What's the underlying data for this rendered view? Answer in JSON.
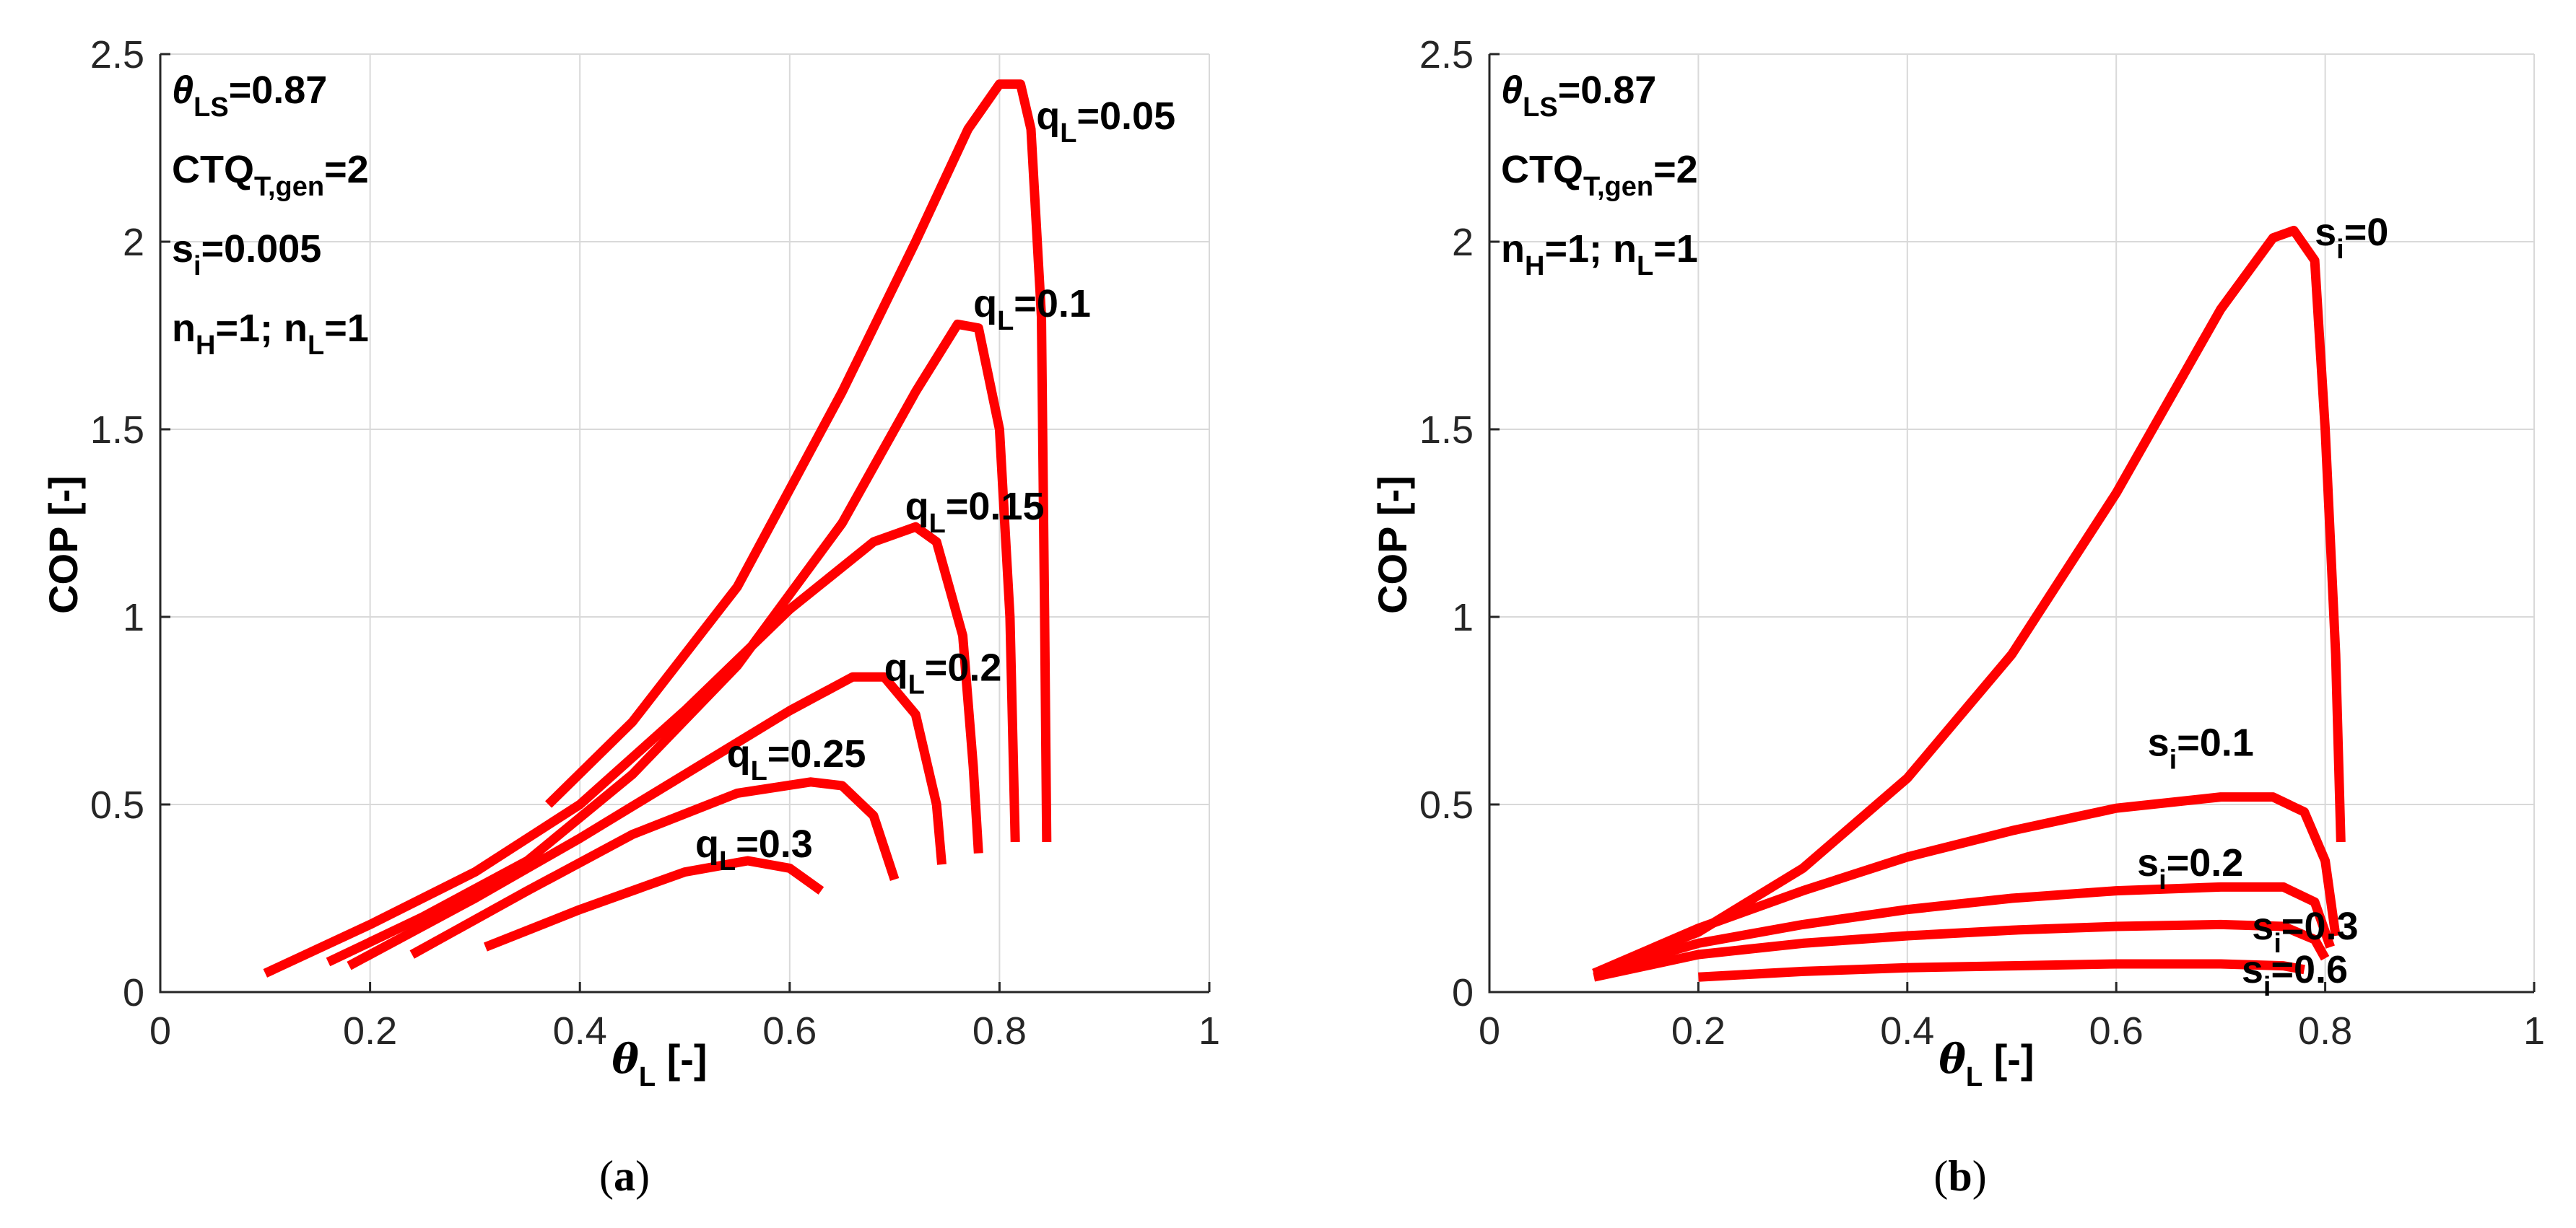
{
  "chart_data": [
    {
      "type": "line",
      "id": "a",
      "caption_open": "(",
      "caption_letter": "a",
      "caption_close": ")",
      "xlabel": "θ",
      "xlabel_sub": "L",
      "xlabel_unit": " [-]",
      "ylabel": "COP [-]",
      "xlim": [
        0,
        1
      ],
      "ylim": [
        0,
        2.5
      ],
      "xticks": [
        "0",
        "0.2",
        "0.4",
        "0.6",
        "0.8",
        "1"
      ],
      "yticks": [
        "0",
        "0.5",
        "1",
        "1.5",
        "2",
        "2.5"
      ],
      "params": [
        {
          "parts": [
            {
              "t": "θ",
              "s": ""
            },
            {
              "t": "LS",
              "s": "sub"
            },
            {
              "t": "=0.87",
              "s": ""
            }
          ]
        },
        {
          "parts": [
            {
              "t": "CTQ",
              "s": ""
            },
            {
              "t": "T,gen",
              "s": "sub"
            },
            {
              "t": "=2",
              "s": ""
            }
          ]
        },
        {
          "parts": [
            {
              "t": "s",
              "s": ""
            },
            {
              "t": "i",
              "s": "sub"
            },
            {
              "t": "=0.005",
              "s": ""
            }
          ]
        },
        {
          "parts": [
            {
              "t": "n",
              "s": ""
            },
            {
              "t": "H",
              "s": "sub"
            },
            {
              "t": "=1; n",
              "s": ""
            },
            {
              "t": "L",
              "s": "sub"
            },
            {
              "t": "=1",
              "s": ""
            }
          ]
        }
      ],
      "series": [
        {
          "label_base": "q",
          "label_sub": "L",
          "label_val": "=0.05",
          "label_at": [
            0.835,
            2.3
          ],
          "points": [
            [
              0.37,
              0.5
            ],
            [
              0.45,
              0.72
            ],
            [
              0.55,
              1.08
            ],
            [
              0.65,
              1.6
            ],
            [
              0.72,
              2.0
            ],
            [
              0.77,
              2.3
            ],
            [
              0.8,
              2.42
            ],
            [
              0.82,
              2.42
            ],
            [
              0.83,
              2.3
            ],
            [
              0.84,
              1.8
            ],
            [
              0.843,
              1.0
            ],
            [
              0.845,
              0.4
            ]
          ]
        },
        {
          "label_base": "q",
          "label_sub": "L",
          "label_val": "=0.1",
          "label_at": [
            0.775,
            1.8
          ],
          "points": [
            [
              0.16,
              0.08
            ],
            [
              0.25,
              0.2
            ],
            [
              0.35,
              0.35
            ],
            [
              0.45,
              0.58
            ],
            [
              0.55,
              0.87
            ],
            [
              0.65,
              1.25
            ],
            [
              0.72,
              1.6
            ],
            [
              0.76,
              1.78
            ],
            [
              0.78,
              1.77
            ],
            [
              0.8,
              1.5
            ],
            [
              0.81,
              1.0
            ],
            [
              0.815,
              0.4
            ]
          ]
        },
        {
          "label_base": "q",
          "label_sub": "L",
          "label_val": "=0.15",
          "label_at": [
            0.71,
            1.26
          ],
          "points": [
            [
              0.1,
              0.05
            ],
            [
              0.2,
              0.18
            ],
            [
              0.3,
              0.32
            ],
            [
              0.4,
              0.5
            ],
            [
              0.5,
              0.75
            ],
            [
              0.6,
              1.02
            ],
            [
              0.68,
              1.2
            ],
            [
              0.72,
              1.24
            ],
            [
              0.74,
              1.2
            ],
            [
              0.765,
              0.95
            ],
            [
              0.775,
              0.6
            ],
            [
              0.78,
              0.37
            ]
          ]
        },
        {
          "label_base": "q",
          "label_sub": "L",
          "label_val": "=0.2",
          "label_at": [
            0.69,
            0.83
          ],
          "points": [
            [
              0.18,
              0.07
            ],
            [
              0.3,
              0.25
            ],
            [
              0.4,
              0.41
            ],
            [
              0.5,
              0.58
            ],
            [
              0.6,
              0.75
            ],
            [
              0.66,
              0.84
            ],
            [
              0.69,
              0.84
            ],
            [
              0.72,
              0.74
            ],
            [
              0.74,
              0.5
            ],
            [
              0.745,
              0.34
            ]
          ]
        },
        {
          "label_base": "q",
          "label_sub": "L",
          "label_val": "=0.25",
          "label_at": [
            0.54,
            0.6
          ],
          "points": [
            [
              0.24,
              0.1
            ],
            [
              0.35,
              0.27
            ],
            [
              0.45,
              0.42
            ],
            [
              0.55,
              0.53
            ],
            [
              0.62,
              0.56
            ],
            [
              0.65,
              0.55
            ],
            [
              0.68,
              0.47
            ],
            [
              0.7,
              0.3
            ]
          ]
        },
        {
          "label_base": "q",
          "label_sub": "L",
          "label_val": "=0.3",
          "label_at": [
            0.51,
            0.36
          ],
          "points": [
            [
              0.31,
              0.12
            ],
            [
              0.4,
              0.22
            ],
            [
              0.5,
              0.32
            ],
            [
              0.56,
              0.35
            ],
            [
              0.6,
              0.33
            ],
            [
              0.63,
              0.27
            ]
          ]
        }
      ]
    },
    {
      "type": "line",
      "id": "b",
      "caption_open": "(",
      "caption_letter": "b",
      "caption_close": ")",
      "xlabel": "θ",
      "xlabel_sub": "L",
      "xlabel_unit": " [-]",
      "ylabel": "COP [-]",
      "xlim": [
        0,
        1
      ],
      "ylim": [
        0,
        2.5
      ],
      "xticks": [
        "0",
        "0.2",
        "0.4",
        "0.6",
        "0.8",
        "1"
      ],
      "yticks": [
        "0",
        "0.5",
        "1",
        "1.5",
        "2",
        "2.5"
      ],
      "params": [
        {
          "parts": [
            {
              "t": "θ",
              "s": ""
            },
            {
              "t": "LS",
              "s": "sub"
            },
            {
              "t": "=0.87",
              "s": ""
            }
          ]
        },
        {
          "parts": [
            {
              "t": "CTQ",
              "s": ""
            },
            {
              "t": "T,gen",
              "s": "sub"
            },
            {
              "t": "=2",
              "s": ""
            }
          ]
        },
        {
          "parts": [
            {
              "t": "n",
              "s": ""
            },
            {
              "t": "H",
              "s": "sub"
            },
            {
              "t": "=1; n",
              "s": ""
            },
            {
              "t": "L",
              "s": "sub"
            },
            {
              "t": "=1",
              "s": ""
            }
          ]
        }
      ],
      "series": [
        {
          "label_base": "s",
          "label_sub": "i",
          "label_val": "=0",
          "label_at": [
            0.79,
            1.99
          ],
          "points": [
            [
              0.1,
              0.05
            ],
            [
              0.2,
              0.16
            ],
            [
              0.3,
              0.33
            ],
            [
              0.4,
              0.57
            ],
            [
              0.5,
              0.9
            ],
            [
              0.6,
              1.33
            ],
            [
              0.7,
              1.82
            ],
            [
              0.75,
              2.01
            ],
            [
              0.77,
              2.03
            ],
            [
              0.79,
              1.95
            ],
            [
              0.8,
              1.5
            ],
            [
              0.81,
              0.9
            ],
            [
              0.815,
              0.4
            ]
          ]
        },
        {
          "label_base": "s",
          "label_sub": "i",
          "label_val": "=0.1",
          "label_at": [
            0.63,
            0.63
          ],
          "points": [
            [
              0.1,
              0.05
            ],
            [
              0.2,
              0.17
            ],
            [
              0.3,
              0.27
            ],
            [
              0.4,
              0.36
            ],
            [
              0.5,
              0.43
            ],
            [
              0.6,
              0.49
            ],
            [
              0.7,
              0.52
            ],
            [
              0.75,
              0.52
            ],
            [
              0.78,
              0.48
            ],
            [
              0.8,
              0.35
            ],
            [
              0.81,
              0.15
            ]
          ]
        },
        {
          "label_base": "s",
          "label_sub": "i",
          "label_val": "=0.2",
          "label_at": [
            0.62,
            0.31
          ],
          "points": [
            [
              0.1,
              0.05
            ],
            [
              0.2,
              0.13
            ],
            [
              0.3,
              0.18
            ],
            [
              0.4,
              0.22
            ],
            [
              0.5,
              0.25
            ],
            [
              0.6,
              0.27
            ],
            [
              0.7,
              0.28
            ],
            [
              0.76,
              0.28
            ],
            [
              0.79,
              0.24
            ],
            [
              0.805,
              0.12
            ]
          ]
        },
        {
          "label_base": "s",
          "label_sub": "i",
          "label_val": "=0.3",
          "label_at": [
            0.73,
            0.14
          ],
          "points": [
            [
              0.1,
              0.04
            ],
            [
              0.2,
              0.1
            ],
            [
              0.3,
              0.13
            ],
            [
              0.4,
              0.15
            ],
            [
              0.5,
              0.165
            ],
            [
              0.6,
              0.175
            ],
            [
              0.7,
              0.18
            ],
            [
              0.76,
              0.175
            ],
            [
              0.79,
              0.14
            ],
            [
              0.8,
              0.09
            ]
          ]
        },
        {
          "label_base": "s",
          "label_sub": "i",
          "label_val": "=0.6",
          "label_at": [
            0.72,
            0.025
          ],
          "points": [
            [
              0.2,
              0.04
            ],
            [
              0.3,
              0.055
            ],
            [
              0.4,
              0.065
            ],
            [
              0.5,
              0.07
            ],
            [
              0.6,
              0.075
            ],
            [
              0.7,
              0.075
            ],
            [
              0.76,
              0.07
            ],
            [
              0.78,
              0.06
            ]
          ]
        }
      ]
    }
  ]
}
